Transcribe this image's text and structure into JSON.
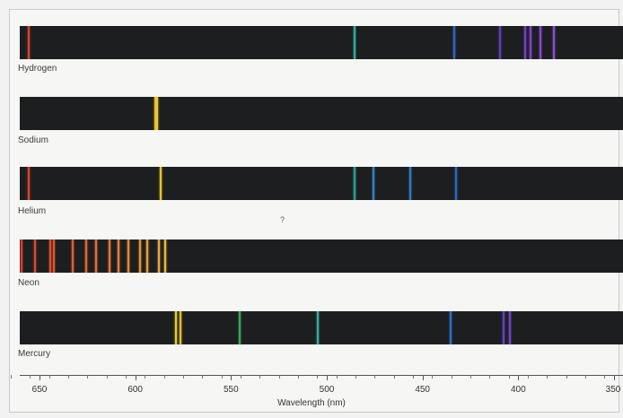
{
  "axis": {
    "title": "Wavelength (nm)",
    "ticks": [
      650,
      600,
      550,
      500,
      450,
      400,
      350
    ],
    "range_nm": [
      665,
      350
    ]
  },
  "stray_mark": "?",
  "spectra": [
    {
      "label": "Hydrogen",
      "lines": [
        {
          "nm": 656,
          "color": "#e2452f"
        },
        {
          "nm": 486,
          "color": "#37b3a8"
        },
        {
          "nm": 434,
          "color": "#3768c9"
        },
        {
          "nm": 410,
          "color": "#6a3fc4"
        },
        {
          "nm": 397,
          "color": "#7a40d0"
        },
        {
          "nm": 394,
          "color": "#8846d8"
        },
        {
          "nm": 389,
          "color": "#8e4adb"
        },
        {
          "nm": 382,
          "color": "#9350df"
        }
      ]
    },
    {
      "label": "Sodium",
      "lines": [
        {
          "nm": 590,
          "color": "#f1c41e"
        },
        {
          "nm": 589,
          "color": "#f4d03a"
        }
      ]
    },
    {
      "label": "Helium",
      "lines": [
        {
          "nm": 656,
          "color": "#e2452f"
        },
        {
          "nm": 587,
          "color": "#f2cc2a"
        },
        {
          "nm": 486,
          "color": "#30a69d"
        },
        {
          "nm": 476,
          "color": "#3188c9"
        },
        {
          "nm": 457,
          "color": "#2f7fd0"
        },
        {
          "nm": 433,
          "color": "#2d6dca"
        }
      ]
    },
    {
      "label": "Neon",
      "lines": [
        {
          "nm": 660,
          "color": "#e6402f"
        },
        {
          "nm": 653,
          "color": "#e84a2f"
        },
        {
          "nm": 645,
          "color": "#ea5130"
        },
        {
          "nm": 643,
          "color": "#ec5832"
        },
        {
          "nm": 633,
          "color": "#ee6234"
        },
        {
          "nm": 626,
          "color": "#ef6b35"
        },
        {
          "nm": 621,
          "color": "#f07437"
        },
        {
          "nm": 614,
          "color": "#f17c38"
        },
        {
          "nm": 609,
          "color": "#f2853a"
        },
        {
          "nm": 604,
          "color": "#f38f3b"
        },
        {
          "nm": 598,
          "color": "#f4993d"
        },
        {
          "nm": 594,
          "color": "#f5a33f"
        },
        {
          "nm": 588,
          "color": "#f6b043"
        },
        {
          "nm": 585,
          "color": "#f7bb45"
        }
      ]
    },
    {
      "label": "Mercury",
      "lines": [
        {
          "nm": 579,
          "color": "#f3d23a"
        },
        {
          "nm": 577,
          "color": "#f1c81f"
        },
        {
          "nm": 546,
          "color": "#3fae5e"
        },
        {
          "nm": 505,
          "color": "#36b6a9"
        },
        {
          "nm": 436,
          "color": "#2f74d2"
        },
        {
          "nm": 408,
          "color": "#6c42c8"
        },
        {
          "nm": 405,
          "color": "#7a44d2"
        }
      ]
    }
  ]
}
